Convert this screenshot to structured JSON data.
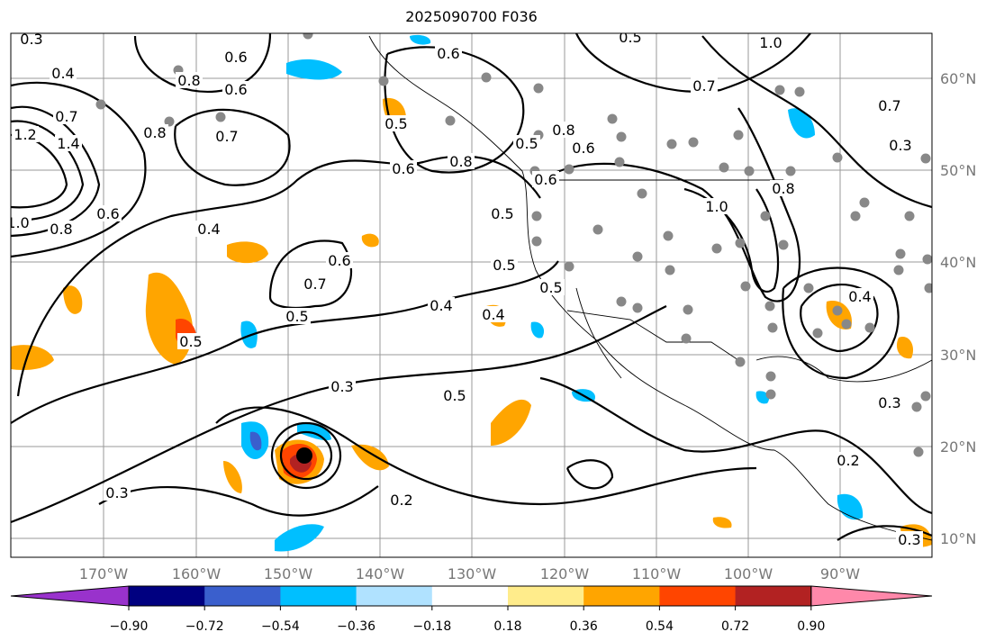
{
  "title": "2025090700 F036",
  "map": {
    "lon_labels": [
      "170°W",
      "160°W",
      "150°W",
      "140°W",
      "130°W",
      "120°W",
      "110°W",
      "100°W",
      "90°W"
    ],
    "lat_labels": [
      "60°N",
      "50°N",
      "40°N",
      "30°N",
      "20°N",
      "10°N"
    ],
    "contour_labels": [
      "0.3",
      "0.4",
      "0.7",
      "1.2",
      "1.4",
      "0.6",
      "0.8",
      "1.0",
      "0.8",
      "0.6",
      "0.8",
      "0.7",
      "0.5",
      "0.6",
      "0.8",
      "0.6",
      "0.5",
      "0.4",
      "0.7",
      "0.6",
      "0.4",
      "0.5",
      "0.5",
      "0.3",
      "0.5",
      "0.6",
      "0.5",
      "0.4",
      "0.3",
      "0.2",
      "0.5",
      "0.6",
      "0.5",
      "0.8",
      "1.0",
      "0.7",
      "0.8",
      "0.3",
      "0.7",
      "1.0",
      "0.5",
      "0.4",
      "0.3",
      "0.2",
      "0.3",
      "0.6"
    ]
  },
  "colorbar": {
    "colors": [
      "#9932cc",
      "#000080",
      "#3a5fcd",
      "#00bfff",
      "#b0e2ff",
      "#ffffff",
      "#ffec8b",
      "#ffa500",
      "#ff4500",
      "#b22222",
      "#ff88aa"
    ],
    "tick_labels": [
      "−0.90",
      "−0.72",
      "−0.54",
      "−0.36",
      "−0.18",
      "0.18",
      "0.36",
      "0.54",
      "0.72",
      "0.90"
    ]
  }
}
